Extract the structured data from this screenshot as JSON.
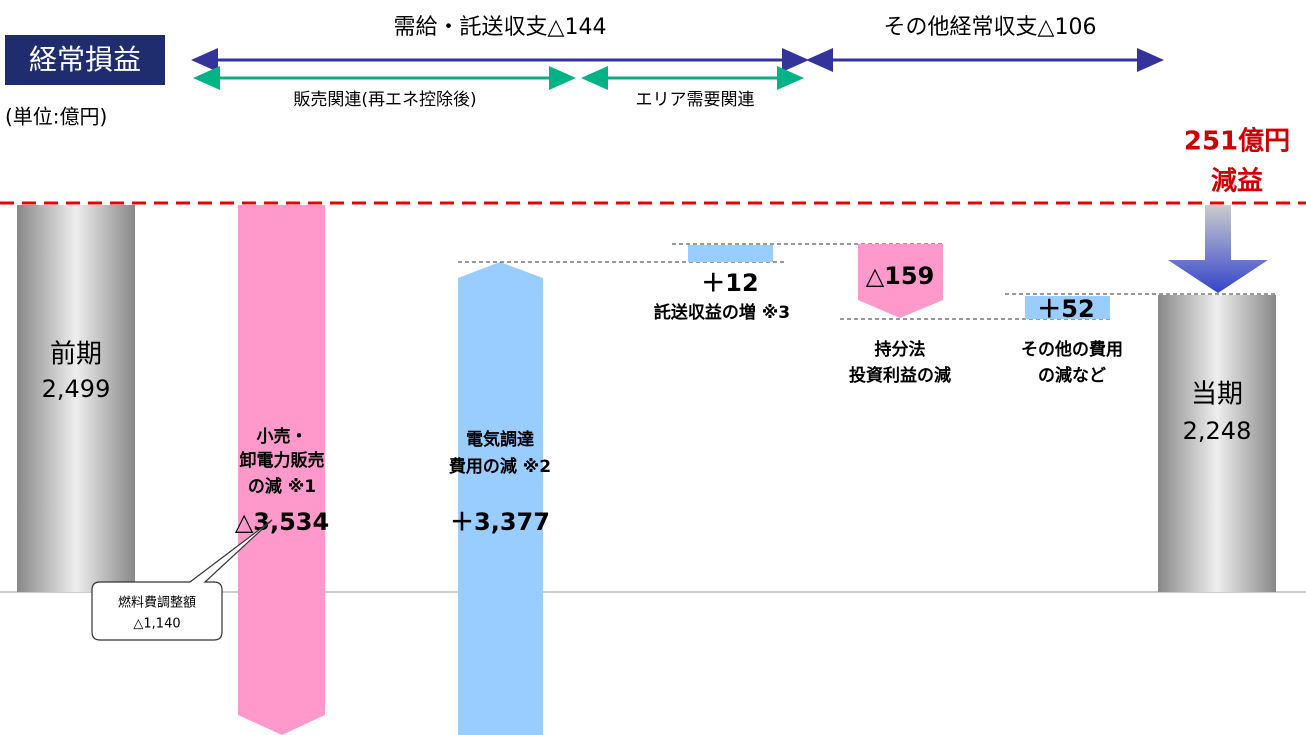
{
  "header": {
    "title": "経常損益",
    "unit": "(単位:億円)",
    "total": [
      "251億円",
      "減益"
    ]
  },
  "groups": [
    {
      "label": "需給・託送収支△144"
    },
    {
      "label": "その他経常収支△106"
    }
  ],
  "subgroups": [
    {
      "label": "販売関連(再エネ控除後)"
    },
    {
      "label": "エリア需要関連"
    }
  ],
  "steps": [
    {
      "label": [
        "前期"
      ],
      "value": "2,499"
    },
    {
      "label": [
        "小売・",
        "卸電力販売",
        "の減 ※1"
      ],
      "value": "△3,534"
    },
    {
      "label": [
        "電気調達",
        "費用の減 ※2"
      ],
      "value": "＋3,377"
    },
    {
      "label": [
        "託送収益の増 ※3"
      ],
      "value": "＋12"
    },
    {
      "label": [
        "持分法",
        "投資利益の減"
      ],
      "value": "△159"
    },
    {
      "label": [
        "その他の費用",
        "の減など"
      ],
      "value": "＋52"
    },
    {
      "label": [
        "当期"
      ],
      "value": "2,248"
    }
  ],
  "callout": {
    "label": "燃料費調整額",
    "value": "△1,140"
  }
}
